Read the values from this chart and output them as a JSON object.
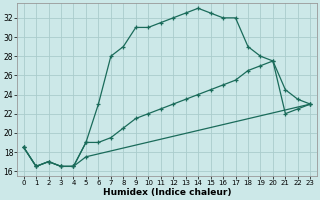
{
  "xlabel": "Humidex (Indice chaleur)",
  "bg_color": "#cce8e8",
  "line_color": "#1a6b5a",
  "grid_color": "#aacccc",
  "xlim": [
    -0.5,
    23.5
  ],
  "ylim": [
    15.5,
    33.5
  ],
  "xticks": [
    0,
    1,
    2,
    3,
    4,
    5,
    6,
    7,
    8,
    9,
    10,
    11,
    12,
    13,
    14,
    15,
    16,
    17,
    18,
    19,
    20,
    21,
    22,
    23
  ],
  "yticks": [
    16,
    18,
    20,
    22,
    24,
    26,
    28,
    30,
    32
  ],
  "line1_x": [
    0,
    1,
    2,
    3,
    4,
    5,
    6,
    7,
    8,
    9,
    10,
    11,
    12,
    13,
    14,
    15,
    16,
    17,
    18,
    19,
    20,
    21,
    22,
    23
  ],
  "line1_y": [
    18.5,
    16.5,
    17.0,
    16.5,
    16.5,
    19.0,
    23.0,
    28.0,
    29.0,
    31.0,
    31.0,
    31.5,
    32.0,
    32.5,
    33.0,
    32.5,
    32.0,
    32.0,
    29.0,
    28.0,
    27.5,
    24.5,
    23.5,
    23.0
  ],
  "line2_x": [
    0,
    1,
    2,
    3,
    4,
    5,
    6,
    7,
    8,
    9,
    10,
    11,
    12,
    13,
    14,
    15,
    16,
    17,
    18,
    19,
    20,
    21,
    22,
    23
  ],
  "line2_y": [
    18.5,
    16.5,
    17.0,
    16.5,
    16.5,
    19.0,
    19.0,
    19.5,
    20.5,
    21.5,
    22.0,
    22.5,
    23.0,
    23.5,
    24.0,
    24.5,
    25.0,
    25.5,
    26.5,
    27.0,
    27.5,
    22.0,
    22.5,
    23.0
  ],
  "line3_x": [
    0,
    1,
    2,
    3,
    4,
    5,
    23
  ],
  "line3_y": [
    18.5,
    16.5,
    17.0,
    16.5,
    16.5,
    17.5,
    23.0
  ]
}
